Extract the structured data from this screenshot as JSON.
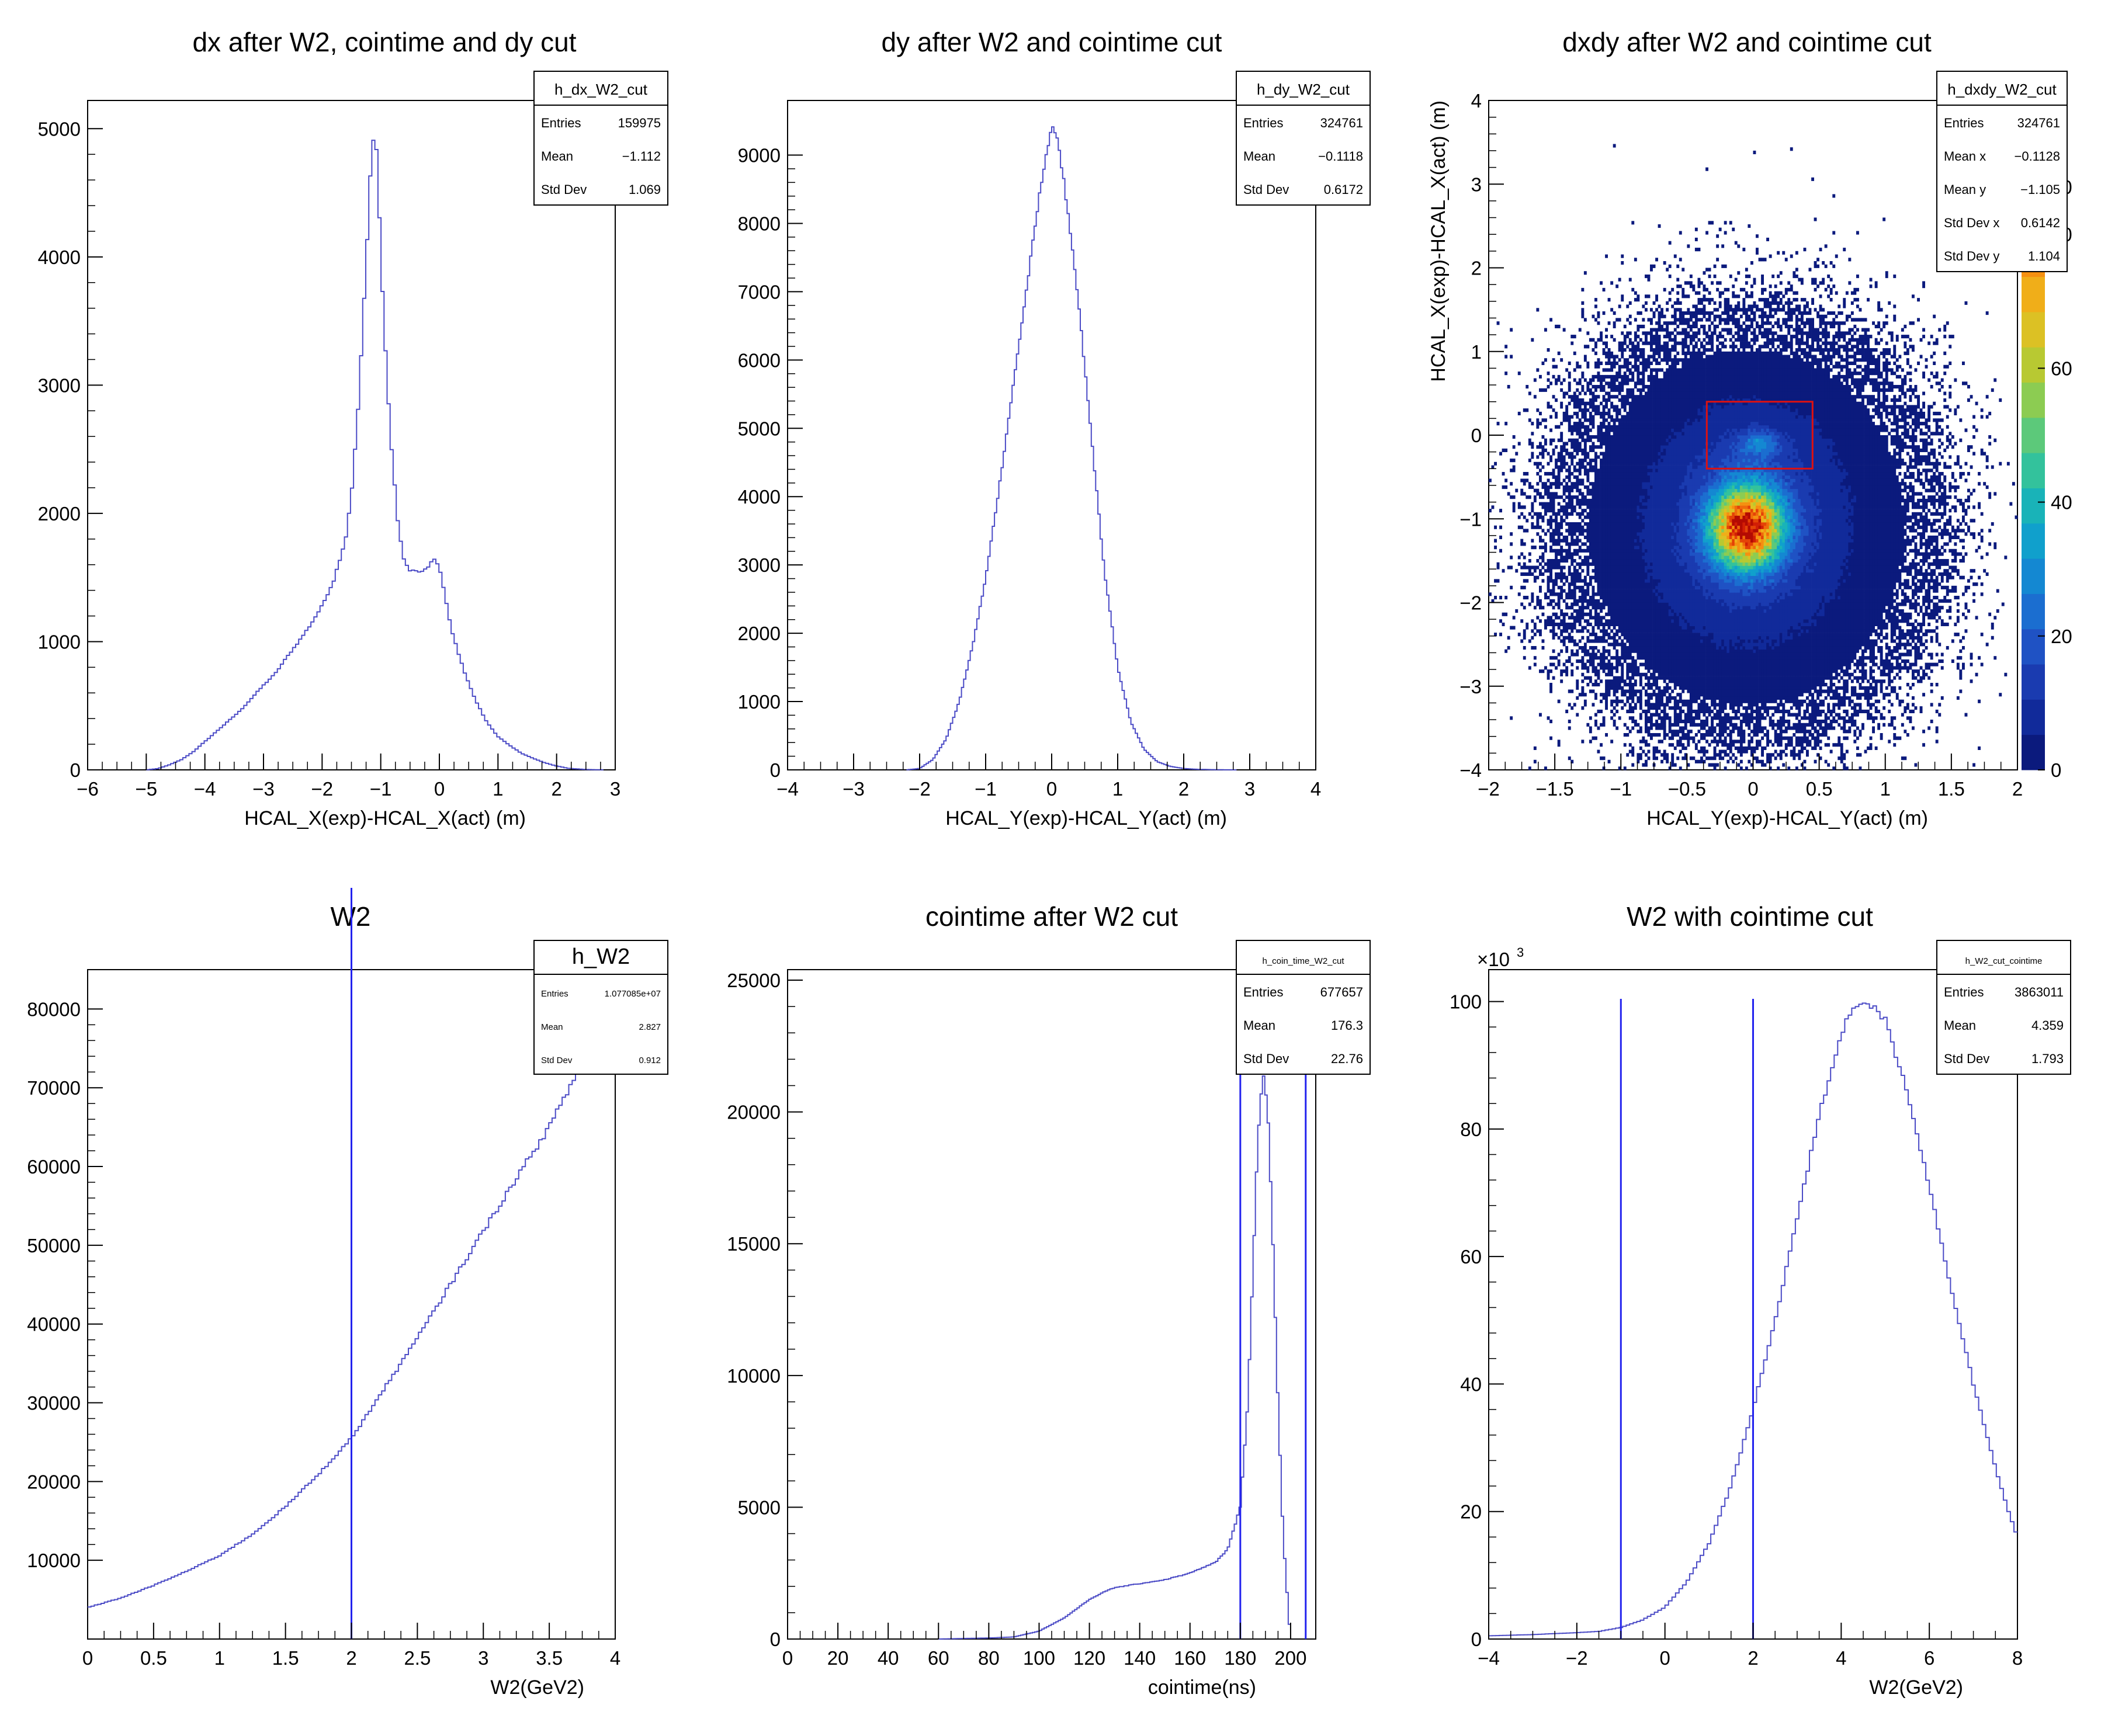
{
  "chart_data": [
    {
      "type": "histogram",
      "title": "dx after W2, cointime and dy cut",
      "xlabel": "HCAL_X(exp)-HCAL_X(act) (m)",
      "xlim": [
        -6,
        3
      ],
      "ylim": [
        0,
        5220
      ],
      "xticks": [
        -6,
        -5,
        -4,
        -3,
        -2,
        -1,
        0,
        1,
        2,
        3
      ],
      "yticks": [
        0,
        1000,
        2000,
        3000,
        4000,
        5000
      ],
      "stats": {
        "name": "h_dx_W2_cut",
        "rows": [
          [
            "Entries",
            "159975"
          ],
          [
            "Mean",
            "−1.112"
          ],
          [
            "Std Dev",
            "1.069"
          ]
        ]
      },
      "curve": [
        [
          -5,
          0
        ],
        [
          -4.8,
          10
        ],
        [
          -4.6,
          40
        ],
        [
          -4.4,
          80
        ],
        [
          -4.2,
          140
        ],
        [
          -4,
          220
        ],
        [
          -3.8,
          300
        ],
        [
          -3.6,
          380
        ],
        [
          -3.4,
          460
        ],
        [
          -3.2,
          560
        ],
        [
          -3,
          660
        ],
        [
          -2.8,
          750
        ],
        [
          -2.6,
          880
        ],
        [
          -2.4,
          1000
        ],
        [
          -2.2,
          1130
        ],
        [
          -2,
          1280
        ],
        [
          -1.8,
          1480
        ],
        [
          -1.6,
          1800
        ],
        [
          -1.5,
          2150
        ],
        [
          -1.4,
          2700
        ],
        [
          -1.3,
          3500
        ],
        [
          -1.2,
          4400
        ],
        [
          -1.15,
          4900
        ],
        [
          -1.1,
          4980
        ],
        [
          -1.05,
          4700
        ],
        [
          -1.0,
          4000
        ],
        [
          -0.9,
          3100
        ],
        [
          -0.8,
          2400
        ],
        [
          -0.7,
          1900
        ],
        [
          -0.6,
          1620
        ],
        [
          -0.5,
          1560
        ],
        [
          -0.4,
          1550
        ],
        [
          -0.3,
          1540
        ],
        [
          -0.2,
          1580
        ],
        [
          -0.1,
          1640
        ],
        [
          0,
          1590
        ],
        [
          0.1,
          1350
        ],
        [
          0.2,
          1100
        ],
        [
          0.4,
          800
        ],
        [
          0.6,
          560
        ],
        [
          0.8,
          380
        ],
        [
          1,
          260
        ],
        [
          1.2,
          190
        ],
        [
          1.4,
          130
        ],
        [
          1.6,
          90
        ],
        [
          1.8,
          55
        ],
        [
          2,
          30
        ],
        [
          2.2,
          12
        ],
        [
          2.5,
          3
        ],
        [
          2.8,
          0
        ]
      ]
    },
    {
      "type": "histogram",
      "title": "dy after W2 and cointime cut",
      "xlabel": "HCAL_Y(exp)-HCAL_Y(act) (m)",
      "xlim": [
        -4,
        4
      ],
      "ylim": [
        0,
        9800
      ],
      "xticks": [
        -4,
        -3,
        -2,
        -1,
        0,
        1,
        2,
        3,
        4
      ],
      "yticks": [
        0,
        1000,
        2000,
        3000,
        4000,
        5000,
        6000,
        7000,
        8000,
        9000
      ],
      "stats": {
        "name": "h_dy_W2_cut",
        "rows": [
          [
            "Entries",
            "324761"
          ],
          [
            "Mean",
            "−0.1118"
          ],
          [
            "Std Dev",
            "0.6172"
          ]
        ]
      },
      "curve": [
        [
          -2.2,
          0
        ],
        [
          -2,
          20
        ],
        [
          -1.8,
          150
        ],
        [
          -1.6,
          450
        ],
        [
          -1.4,
          1000
        ],
        [
          -1.2,
          1800
        ],
        [
          -1.0,
          2800
        ],
        [
          -0.8,
          4100
        ],
        [
          -0.6,
          5500
        ],
        [
          -0.4,
          6900
        ],
        [
          -0.2,
          8300
        ],
        [
          -0.1,
          8950
        ],
        [
          0,
          9350
        ],
        [
          0.05,
          9380
        ],
        [
          0.1,
          9200
        ],
        [
          0.2,
          8500
        ],
        [
          0.4,
          6900
        ],
        [
          0.6,
          4900
        ],
        [
          0.8,
          2900
        ],
        [
          1.0,
          1500
        ],
        [
          1.2,
          700
        ],
        [
          1.4,
          300
        ],
        [
          1.6,
          120
        ],
        [
          1.8,
          50
        ],
        [
          2.0,
          20
        ],
        [
          2.2,
          8
        ],
        [
          2.5,
          2
        ],
        [
          2.8,
          0
        ]
      ]
    },
    {
      "type": "heatmap",
      "title": "dxdy after W2 and cointime cut",
      "xlabel": "HCAL_Y(exp)-HCAL_Y(act) (m)",
      "ylabel": "HCAL_X(exp)-HCAL_X(act) (m)",
      "xlim": [
        -2,
        2
      ],
      "ylim": [
        -4,
        4
      ],
      "xticks": [
        -2,
        -1.5,
        -1,
        -0.5,
        0,
        0.5,
        1,
        1.5,
        2
      ],
      "yticks": [
        -4,
        -3,
        -2,
        -1,
        0,
        1,
        2,
        3,
        4
      ],
      "zticks": [
        0,
        20,
        40,
        60,
        80
      ],
      "zlim": [
        0,
        100
      ],
      "zmax_label_partial": "00",
      "stats": {
        "name": "h_dxdy_W2_cut",
        "rows": [
          [
            "Entries",
            "324761"
          ],
          [
            "Mean x",
            "−0.1128"
          ],
          [
            "Mean y",
            "−1.105"
          ],
          [
            "Std Dev x",
            "0.6142"
          ],
          [
            "Std Dev y",
            "1.104"
          ]
        ]
      },
      "cut_box": {
        "x": [
          -0.35,
          0.45
        ],
        "y": [
          -0.4,
          0.4
        ],
        "color": "#dd1111"
      },
      "blobs": [
        {
          "x": -0.05,
          "y": -1.1,
          "sx": 0.62,
          "sy": 1.1,
          "peak": 100
        },
        {
          "x": 0.05,
          "y": -0.1,
          "sx": 0.35,
          "sy": 0.35,
          "peak": 20
        }
      ]
    },
    {
      "type": "histogram",
      "title": "W2",
      "xlabel": "W2(GeV2)",
      "xlim": [
        0,
        4
      ],
      "ylim": [
        0,
        85000
      ],
      "xticks": [
        0,
        0.5,
        1,
        1.5,
        2,
        2.5,
        3,
        3.5,
        4
      ],
      "yticks": [
        10000,
        20000,
        30000,
        40000,
        50000,
        60000,
        70000,
        80000
      ],
      "stats": {
        "name": "h_W2",
        "rows": [
          [
            "Entries",
            "1.077085e+07"
          ],
          [
            "Mean",
            "2.827"
          ],
          [
            "Std Dev",
            "0.912"
          ]
        ]
      },
      "cut_lines": [
        2
      ],
      "curve": [
        [
          0,
          4000
        ],
        [
          0.25,
          5200
        ],
        [
          0.5,
          6800
        ],
        [
          0.75,
          8600
        ],
        [
          1,
          10600
        ],
        [
          1.25,
          13300
        ],
        [
          1.5,
          16800
        ],
        [
          1.75,
          20900
        ],
        [
          2,
          25500
        ],
        [
          2.25,
          31800
        ],
        [
          2.5,
          38200
        ],
        [
          2.75,
          45000
        ],
        [
          3,
          51800
        ],
        [
          3.25,
          58500
        ],
        [
          3.5,
          65000
        ],
        [
          3.7,
          71500
        ],
        [
          3.8,
          74000
        ]
      ]
    },
    {
      "type": "histogram",
      "title": "cointime after W2 cut",
      "xlabel": "cointime(ns)",
      "xlim": [
        0,
        210
      ],
      "ylim": [
        0,
        25400
      ],
      "xticks": [
        0,
        20,
        40,
        60,
        80,
        100,
        120,
        140,
        160,
        180,
        200
      ],
      "yticks": [
        0,
        5000,
        10000,
        15000,
        20000,
        25000
      ],
      "stats": {
        "name": "h_coin_time_W2_cut",
        "rows": [
          [
            "Entries",
            "677657"
          ],
          [
            "Mean",
            "176.3"
          ],
          [
            "Std Dev",
            "22.76"
          ]
        ]
      },
      "cut_lines": [
        180,
        206
      ],
      "curve": [
        [
          60,
          0
        ],
        [
          70,
          20
        ],
        [
          80,
          40
        ],
        [
          90,
          80
        ],
        [
          100,
          300
        ],
        [
          110,
          800
        ],
        [
          120,
          1500
        ],
        [
          125,
          1750
        ],
        [
          130,
          1950
        ],
        [
          140,
          2100
        ],
        [
          150,
          2250
        ],
        [
          160,
          2500
        ],
        [
          170,
          2900
        ],
        [
          175,
          3400
        ],
        [
          180,
          5000
        ],
        [
          183,
          9000
        ],
        [
          185,
          14000
        ],
        [
          187,
          19000
        ],
        [
          189,
          21500
        ],
        [
          191,
          20000
        ],
        [
          193,
          15000
        ],
        [
          195,
          9000
        ],
        [
          197,
          4000
        ],
        [
          199,
          1200
        ],
        [
          200,
          0
        ]
      ]
    },
    {
      "type": "histogram",
      "title": "W2 with cointime cut",
      "xlabel": "W2(GeV2)",
      "xlim": [
        -4,
        8
      ],
      "ylim": [
        0,
        105
      ],
      "yscale_label": "×10",
      "yscale_exp": "3",
      "xticks": [
        -4,
        -2,
        0,
        2,
        4,
        6,
        8
      ],
      "yticks": [
        0,
        20,
        40,
        60,
        80,
        100
      ],
      "stats": {
        "name": "h_W2_cut_cointime",
        "rows": [
          [
            "Entries",
            "3863011"
          ],
          [
            "Mean",
            "4.359"
          ],
          [
            "Std Dev",
            "1.793"
          ]
        ]
      },
      "cut_lines": [
        -1,
        2
      ],
      "curve": [
        [
          -4,
          0.5
        ],
        [
          -3,
          0.7
        ],
        [
          -2,
          1
        ],
        [
          -1.5,
          1.2
        ],
        [
          -1,
          1.8
        ],
        [
          -0.5,
          3
        ],
        [
          0,
          5
        ],
        [
          0.5,
          9
        ],
        [
          1,
          15
        ],
        [
          1.5,
          24
        ],
        [
          2,
          36
        ],
        [
          2.5,
          50
        ],
        [
          3,
          66
        ],
        [
          3.5,
          82
        ],
        [
          4,
          95
        ],
        [
          4.3,
          99.5
        ],
        [
          4.6,
          100
        ],
        [
          5,
          97
        ],
        [
          5.5,
          86
        ],
        [
          6,
          71
        ],
        [
          6.5,
          55
        ],
        [
          7,
          40
        ],
        [
          7.5,
          27
        ],
        [
          7.8,
          20
        ],
        [
          8,
          16
        ]
      ]
    }
  ]
}
